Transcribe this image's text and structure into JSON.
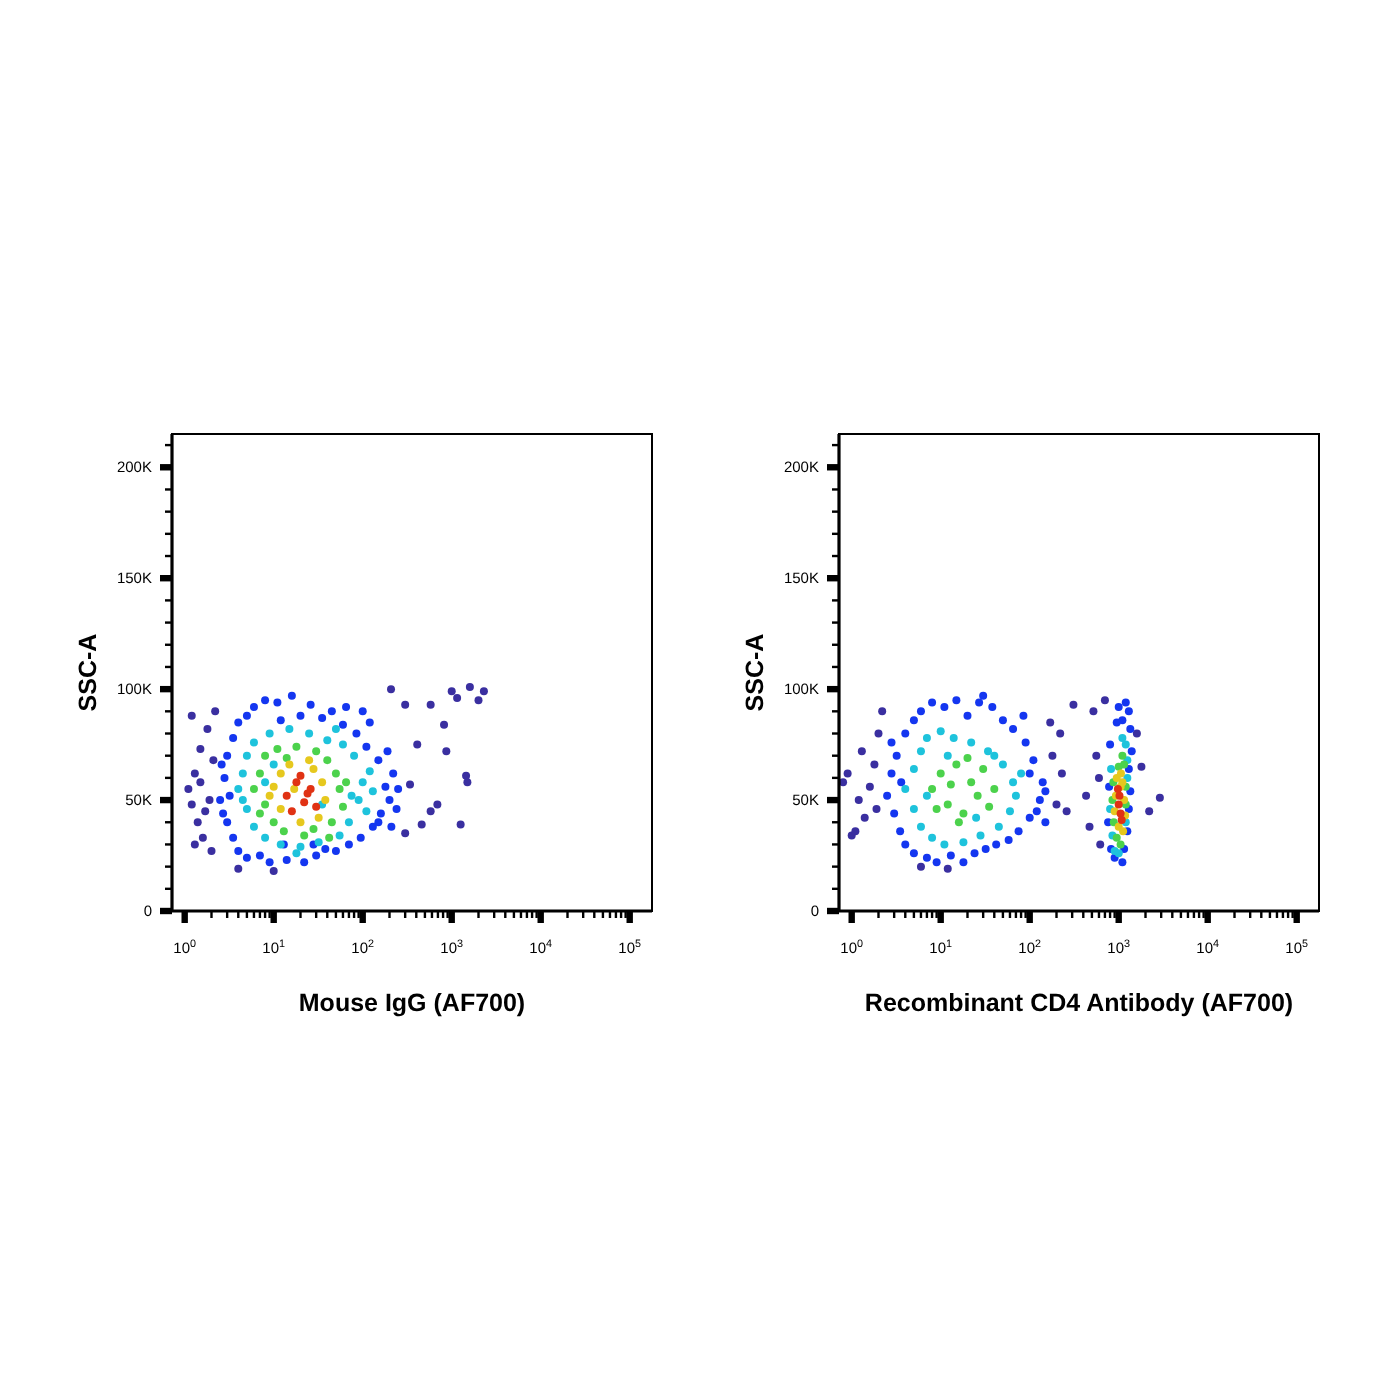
{
  "chart_data": [
    {
      "type": "scatter",
      "xlabel": "Mouse IgG (AF700)",
      "ylabel": "SSC-A",
      "log": "x",
      "marker": "circle",
      "xlim": [
        0.72,
        178000
      ],
      "ylim": [
        0,
        215000
      ],
      "xticks": [
        {
          "value": 1,
          "label": "10$^{0}$"
        },
        {
          "value": 2,
          "label": null
        },
        {
          "value": 3,
          "label": null
        },
        {
          "value": 4,
          "label": null
        },
        {
          "value": 5,
          "label": null
        },
        {
          "value": 6,
          "label": null
        },
        {
          "value": 7,
          "label": null
        },
        {
          "value": 8,
          "label": null
        },
        {
          "value": 9,
          "label": null
        },
        {
          "value": 10,
          "label": "10$^{1}$"
        },
        {
          "value": 20,
          "label": null
        },
        {
          "value": 30,
          "label": null
        },
        {
          "value": 40,
          "label": null
        },
        {
          "value": 50,
          "label": null
        },
        {
          "value": 60,
          "label": null
        },
        {
          "value": 70,
          "label": null
        },
        {
          "value": 80,
          "label": null
        },
        {
          "value": 90,
          "label": null
        },
        {
          "value": 100,
          "label": "10$^{2}$"
        },
        {
          "value": 200,
          "label": null
        },
        {
          "value": 300,
          "label": null
        },
        {
          "value": 400,
          "label": null
        },
        {
          "value": 500,
          "label": null
        },
        {
          "value": 600,
          "label": null
        },
        {
          "value": 700,
          "label": null
        },
        {
          "value": 800,
          "label": null
        },
        {
          "value": 900,
          "label": null
        },
        {
          "value": 1000,
          "label": "10$^{3}$"
        },
        {
          "value": 2000,
          "label": null
        },
        {
          "value": 3000,
          "label": null
        },
        {
          "value": 4000,
          "label": null
        },
        {
          "value": 5000,
          "label": null
        },
        {
          "value": 6000,
          "label": null
        },
        {
          "value": 7000,
          "label": null
        },
        {
          "value": 8000,
          "label": null
        },
        {
          "value": 9000,
          "label": null
        },
        {
          "value": 10000,
          "label": "10$^{4}$"
        },
        {
          "value": 20000,
          "label": null
        },
        {
          "value": 30000,
          "label": null
        },
        {
          "value": 40000,
          "label": null
        },
        {
          "value": 50000,
          "label": null
        },
        {
          "value": 60000,
          "label": null
        },
        {
          "value": 70000,
          "label": null
        },
        {
          "value": 80000,
          "label": null
        },
        {
          "value": 90000,
          "label": null
        },
        {
          "value": 100000,
          "label": "10$^{5}$"
        }
      ],
      "yticks": [
        {
          "value": 0,
          "label": "0"
        },
        {
          "value": 10000,
          "label": null
        },
        {
          "value": 20000,
          "label": null
        },
        {
          "value": 30000,
          "label": null
        },
        {
          "value": 40000,
          "label": null
        },
        {
          "value": 50000,
          "label": "50K"
        },
        {
          "value": 60000,
          "label": null
        },
        {
          "value": 70000,
          "label": null
        },
        {
          "value": 80000,
          "label": null
        },
        {
          "value": 90000,
          "label": null
        },
        {
          "value": 100000,
          "label": "100K"
        },
        {
          "value": 110000,
          "label": null
        },
        {
          "value": 120000,
          "label": null
        },
        {
          "value": 130000,
          "label": null
        },
        {
          "value": 140000,
          "label": null
        },
        {
          "value": 150000,
          "label": "150K"
        },
        {
          "value": 160000,
          "label": null
        },
        {
          "value": 170000,
          "label": null
        },
        {
          "value": 180000,
          "label": null
        },
        {
          "value": 190000,
          "label": null
        },
        {
          "value": 200000,
          "label": "200K"
        },
        {
          "value": 210000,
          "label": null
        }
      ],
      "series": [
        {
          "color": "#3a2fa0",
          "x": [
            1.1,
            1.2,
            1.2,
            1.3,
            1.4,
            1.5,
            1.6,
            1.8,
            1.9,
            2,
            2.2,
            1.3,
            1.5,
            2.1,
            1.7,
            4,
            10,
            208,
            580,
            1150,
            2300,
            1600,
            820,
            1450,
            1500,
            1260,
            580,
            340,
            410,
            300,
            870,
            460,
            690,
            2000,
            1000,
            300
          ],
          "values": [
            55000,
            48000,
            88000,
            62000,
            40000,
            73000,
            33000,
            82000,
            50000,
            27000,
            90000,
            30000,
            58000,
            68000,
            45000,
            19000,
            18000,
            100000,
            93000,
            96000,
            99000,
            101000,
            84000,
            61000,
            58000,
            39000,
            45000,
            57000,
            75000,
            93000,
            72000,
            39000,
            48000,
            95000,
            99000,
            35000
          ]
        },
        {
          "color": "#1436f0",
          "x": [
            2.5,
            2.8,
            3,
            3,
            3.5,
            3.5,
            4,
            4,
            5,
            5,
            6,
            7,
            8,
            9,
            11,
            12,
            14,
            16,
            20,
            22,
            26,
            30,
            35,
            38,
            45,
            50,
            60,
            70,
            85,
            95,
            110,
            130,
            150,
            160,
            180,
            200,
            220,
            240,
            190,
            120,
            100,
            150,
            3.2,
            2.6,
            2.7,
            28,
            13,
            65,
            210,
            250
          ],
          "values": [
            50000,
            60000,
            40000,
            70000,
            78000,
            33000,
            85000,
            27000,
            88000,
            24000,
            92000,
            25000,
            95000,
            22000,
            94000,
            86000,
            23000,
            97000,
            88000,
            22000,
            93000,
            25000,
            87000,
            28000,
            90000,
            27000,
            84000,
            30000,
            80000,
            33000,
            74000,
            38000,
            68000,
            44000,
            56000,
            50000,
            62000,
            46000,
            72000,
            85000,
            90000,
            40000,
            52000,
            66000,
            44000,
            30000,
            30000,
            92000,
            38000,
            55000
          ]
        },
        {
          "color": "#1ec3dc",
          "x": [
            4,
            4.5,
            5,
            5,
            6,
            6,
            8,
            9,
            12,
            15,
            20,
            25,
            32,
            40,
            55,
            70,
            80,
            90,
            100,
            110,
            120,
            60,
            8,
            10,
            35,
            75,
            4.5,
            18,
            130,
            50
          ],
          "values": [
            55000,
            62000,
            46000,
            70000,
            38000,
            76000,
            33000,
            80000,
            30000,
            82000,
            29000,
            80000,
            31000,
            77000,
            34000,
            40000,
            70000,
            50000,
            58000,
            45000,
            63000,
            75000,
            58000,
            66000,
            48000,
            52000,
            50000,
            26000,
            54000,
            82000
          ]
        },
        {
          "color": "#4cd24c",
          "x": [
            6,
            7,
            8,
            8,
            10,
            11,
            13,
            18,
            22,
            30,
            40,
            45,
            55,
            60,
            50,
            28,
            7,
            65,
            14,
            42
          ],
          "values": [
            55000,
            62000,
            48000,
            70000,
            40000,
            73000,
            36000,
            74000,
            34000,
            72000,
            68000,
            40000,
            55000,
            47000,
            62000,
            37000,
            44000,
            58000,
            69000,
            33000
          ]
        },
        {
          "color": "#e6c81e",
          "x": [
            10,
            12,
            15,
            28,
            35,
            38,
            32,
            20,
            12,
            9,
            25,
            17
          ],
          "values": [
            56000,
            62000,
            66000,
            64000,
            58000,
            50000,
            42000,
            40000,
            46000,
            52000,
            68000,
            55000
          ]
        },
        {
          "color": "#e03214",
          "x": [
            14,
            18,
            22,
            26,
            20,
            30,
            16,
            24
          ],
          "values": [
            52000,
            58000,
            49000,
            55000,
            61000,
            47000,
            45000,
            53000
          ]
        }
      ]
    },
    {
      "type": "scatter",
      "xlabel": "Recombinant CD4 Antibody (AF700)",
      "ylabel": "SSC-A",
      "log": "x",
      "marker": "circle",
      "xlim": [
        0.72,
        178000
      ],
      "ylim": [
        0,
        215000
      ],
      "xticks": [
        {
          "value": 1,
          "label": "10$^{0}$"
        },
        {
          "value": 2,
          "label": null
        },
        {
          "value": 3,
          "label": null
        },
        {
          "value": 4,
          "label": null
        },
        {
          "value": 5,
          "label": null
        },
        {
          "value": 6,
          "label": null
        },
        {
          "value": 7,
          "label": null
        },
        {
          "value": 8,
          "label": null
        },
        {
          "value": 9,
          "label": null
        },
        {
          "value": 10,
          "label": "10$^{1}$"
        },
        {
          "value": 20,
          "label": null
        },
        {
          "value": 30,
          "label": null
        },
        {
          "value": 40,
          "label": null
        },
        {
          "value": 50,
          "label": null
        },
        {
          "value": 60,
          "label": null
        },
        {
          "value": 70,
          "label": null
        },
        {
          "value": 80,
          "label": null
        },
        {
          "value": 90,
          "label": null
        },
        {
          "value": 100,
          "label": "10$^{2}$"
        },
        {
          "value": 200,
          "label": null
        },
        {
          "value": 300,
          "label": null
        },
        {
          "value": 400,
          "label": null
        },
        {
          "value": 500,
          "label": null
        },
        {
          "value": 600,
          "label": null
        },
        {
          "value": 700,
          "label": null
        },
        {
          "value": 800,
          "label": null
        },
        {
          "value": 900,
          "label": null
        },
        {
          "value": 1000,
          "label": "10$^{3}$"
        },
        {
          "value": 2000,
          "label": null
        },
        {
          "value": 3000,
          "label": null
        },
        {
          "value": 4000,
          "label": null
        },
        {
          "value": 5000,
          "label": null
        },
        {
          "value": 6000,
          "label": null
        },
        {
          "value": 7000,
          "label": null
        },
        {
          "value": 8000,
          "label": null
        },
        {
          "value": 9000,
          "label": null
        },
        {
          "value": 10000,
          "label": "10$^{4}$"
        },
        {
          "value": 20000,
          "label": null
        },
        {
          "value": 30000,
          "label": null
        },
        {
          "value": 40000,
          "label": null
        },
        {
          "value": 50000,
          "label": null
        },
        {
          "value": 60000,
          "label": null
        },
        {
          "value": 70000,
          "label": null
        },
        {
          "value": 80000,
          "label": null
        },
        {
          "value": 90000,
          "label": null
        },
        {
          "value": 100000,
          "label": "10$^{5}$"
        }
      ],
      "yticks": [
        {
          "value": 0,
          "label": "0"
        },
        {
          "value": 10000,
          "label": null
        },
        {
          "value": 20000,
          "label": null
        },
        {
          "value": 30000,
          "label": null
        },
        {
          "value": 40000,
          "label": null
        },
        {
          "value": 50000,
          "label": "50K"
        },
        {
          "value": 60000,
          "label": null
        },
        {
          "value": 70000,
          "label": null
        },
        {
          "value": 80000,
          "label": null
        },
        {
          "value": 90000,
          "label": null
        },
        {
          "value": 100000,
          "label": "100K"
        },
        {
          "value": 110000,
          "label": null
        },
        {
          "value": 120000,
          "label": null
        },
        {
          "value": 130000,
          "label": null
        },
        {
          "value": 140000,
          "label": null
        },
        {
          "value": 150000,
          "label": "150K"
        },
        {
          "value": 160000,
          "label": null
        },
        {
          "value": 170000,
          "label": null
        },
        {
          "value": 180000,
          "label": null
        },
        {
          "value": 190000,
          "label": null
        },
        {
          "value": 200000,
          "label": "200K"
        },
        {
          "value": 210000,
          "label": null
        }
      ],
      "series": [
        {
          "color": "#3a2fa0",
          "x": [
            0.8,
            0.9,
            1,
            1.1,
            1.2,
            1.3,
            1.4,
            1.6,
            1.8,
            1.9,
            2,
            2.2,
            180,
            200,
            230,
            260,
            310,
            170,
            220,
            6,
            12,
            430,
            470,
            520,
            560,
            600,
            700,
            2200,
            2900,
            1600,
            620,
            1800
          ],
          "values": [
            58000,
            62000,
            34000,
            36000,
            50000,
            72000,
            42000,
            56000,
            66000,
            46000,
            80000,
            90000,
            70000,
            48000,
            62000,
            45000,
            93000,
            85000,
            80000,
            20000,
            19000,
            52000,
            38000,
            90000,
            70000,
            60000,
            95000,
            45000,
            51000,
            80000,
            30000,
            65000
          ]
        },
        {
          "color": "#1436f0",
          "x": [
            2.5,
            2.8,
            3,
            3.2,
            3.5,
            4,
            4,
            5,
            5,
            6,
            7,
            8,
            9,
            11,
            13,
            15,
            18,
            20,
            24,
            27,
            32,
            38,
            42,
            50,
            58,
            65,
            75,
            90,
            100,
            110,
            130,
            140,
            120,
            100,
            150,
            3.6,
            85,
            30,
            2.8,
            150,
            1300,
            1200,
            1350,
            1100,
            1400,
            1300,
            1350,
            1300,
            1250,
            800,
            780,
            760,
            820,
            900,
            1100,
            1150,
            950,
            1000
          ],
          "values": [
            52000,
            62000,
            44000,
            70000,
            36000,
            80000,
            30000,
            86000,
            26000,
            90000,
            24000,
            94000,
            22000,
            92000,
            25000,
            95000,
            22000,
            88000,
            26000,
            94000,
            28000,
            92000,
            30000,
            86000,
            32000,
            82000,
            36000,
            76000,
            42000,
            68000,
            50000,
            58000,
            45000,
            62000,
            54000,
            58000,
            88000,
            97000,
            76000,
            40000,
            90000,
            94000,
            82000,
            86000,
            72000,
            64000,
            54000,
            46000,
            36000,
            75000,
            56000,
            40000,
            28000,
            24000,
            22000,
            28000,
            85000,
            92000
          ]
        },
        {
          "color": "#1ec3dc",
          "x": [
            4,
            5,
            5,
            6,
            6,
            7,
            8,
            10,
            11,
            14,
            18,
            22,
            28,
            34,
            45,
            50,
            60,
            65,
            70,
            80,
            7,
            25,
            40,
            12,
            1200,
            1250,
            1100,
            820,
            800,
            850,
            900,
            1000,
            1250,
            1200
          ],
          "values": [
            55000,
            64000,
            46000,
            72000,
            38000,
            78000,
            33000,
            81000,
            30000,
            78000,
            31000,
            76000,
            34000,
            72000,
            38000,
            66000,
            45000,
            58000,
            52000,
            62000,
            52000,
            42000,
            70000,
            70000,
            75000,
            68000,
            78000,
            64000,
            46000,
            34000,
            27000,
            26000,
            60000,
            40000
          ]
        },
        {
          "color": "#4cd24c",
          "x": [
            8,
            10,
            12,
            15,
            18,
            22,
            26,
            30,
            35,
            13,
            20,
            9,
            40,
            16,
            1150,
            1100,
            870,
            880,
            950,
            1200,
            1000,
            1200,
            1050,
            850
          ],
          "values": [
            55000,
            62000,
            48000,
            66000,
            44000,
            58000,
            52000,
            64000,
            47000,
            57000,
            69000,
            46000,
            55000,
            40000,
            66000,
            70000,
            58000,
            40000,
            33000,
            56000,
            65000,
            48000,
            30000,
            50000
          ]
        },
        {
          "color": "#e6c81e",
          "x": [
            950,
            1100,
            1150,
            900,
            1000,
            1120,
            1060,
            930,
            1180,
            1050
          ],
          "values": [
            60000,
            58000,
            50000,
            45000,
            38000,
            36000,
            62000,
            52000,
            43000,
            56000
          ]
        },
        {
          "color": "#e03214",
          "x": [
            1000,
            1050,
            1020,
            1080,
            980
          ],
          "values": [
            48000,
            44000,
            52000,
            41000,
            55000
          ]
        }
      ]
    }
  ]
}
